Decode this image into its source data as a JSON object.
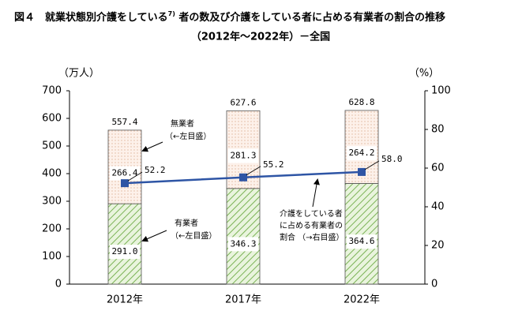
{
  "chart_data": {
    "type": "bar_line",
    "title": [
      "図４　就業状態別介護をしている",
      "7)",
      " 者の数及び介護をしている者に占める有業者の割合の推移"
    ],
    "subtitle": "（2012年～2022年）－全国",
    "y_unit": "（万人）",
    "y2_unit": "（%）",
    "categories": [
      "2012年",
      "2017年",
      "2022年"
    ],
    "series": [
      {
        "name": "有業者",
        "note": "（←左目盛）",
        "color": "#8cc26a",
        "values": [
          291.0,
          346.3,
          364.6
        ],
        "value_labels": [
          "291.0",
          "346.3",
          "364.6"
        ]
      },
      {
        "name": "無業者",
        "note": "（←左目盛）",
        "color": "#f2c9b0",
        "values": [
          266.4,
          281.3,
          264.2
        ],
        "value_labels": [
          "266.4",
          "281.3",
          "264.2"
        ]
      },
      {
        "type": "line",
        "axis": "y2",
        "color": "#2e55a5",
        "values": [
          52.2,
          55.2,
          58.0
        ],
        "value_labels": [
          "52.2",
          "55.2",
          "58.0"
        ]
      }
    ],
    "totals": [
      557.4,
      627.6,
      628.8
    ],
    "line_note": [
      "介護をしている者",
      "に占める有業者の",
      "割合 （→右目盛）"
    ],
    "ylim": [
      0,
      700
    ],
    "yticks": [
      0,
      100,
      200,
      300,
      400,
      500,
      600,
      700
    ],
    "y2lim": [
      0,
      100
    ],
    "y2ticks": [
      0,
      20,
      40,
      60,
      80,
      100
    ]
  }
}
